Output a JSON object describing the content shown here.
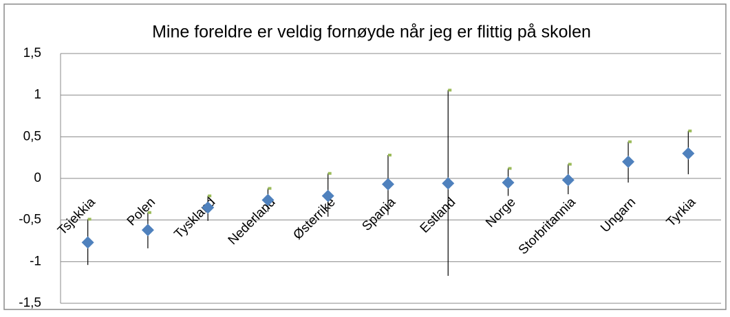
{
  "chart_data": {
    "type": "high-low-mean",
    "title": "Mine foreldre er veldig fornøyde når jeg er flittig på skolen",
    "categories": [
      "Tsjekkia",
      "Polen",
      "Tyskland",
      "Nederland",
      "Østerrike",
      "Spania",
      "Estland",
      "Norge",
      "Storbritannia",
      "Ungarn",
      "Tyrkia"
    ],
    "series": [
      {
        "color": "#9bbb59",
        "values": [
          -0.49,
          -0.41,
          -0.21,
          -0.12,
          0.06,
          0.28,
          1.06,
          0.12,
          0.17,
          0.44,
          0.57
        ]
      },
      {
        "color": "#000000",
        "values": [
          -1.04,
          -0.84,
          -0.51,
          -0.4,
          -0.46,
          -0.44,
          -1.17,
          -0.21,
          -0.19,
          -0.05,
          0.05
        ]
      },
      {
        "color": "#4f81bd",
        "values": [
          -0.77,
          -0.62,
          -0.35,
          -0.26,
          -0.21,
          -0.07,
          -0.06,
          -0.05,
          -0.02,
          0.2,
          0.3
        ]
      }
    ],
    "ylim": [
      -1.5,
      1.5
    ],
    "yticks": [
      {
        "value": -1.5,
        "label": "-1,5"
      },
      -1,
      {
        "value": -0.5,
        "label": "-0,5"
      },
      0,
      {
        "value": 0.5,
        "label": "0,5"
      },
      1,
      {
        "value": 1.5,
        "label": "1,5"
      }
    ],
    "grid": true
  }
}
